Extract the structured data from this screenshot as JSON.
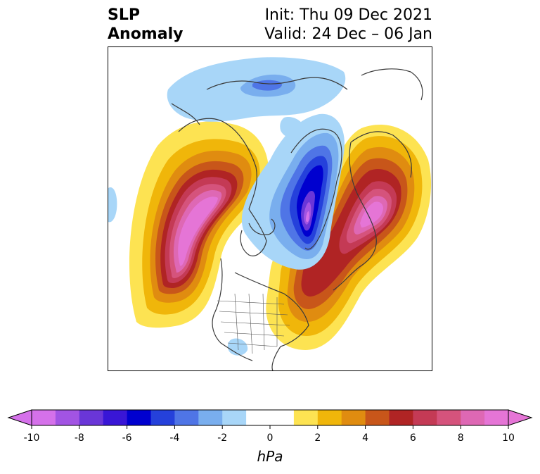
{
  "title": {
    "left_line1": "SLP",
    "left_line2": "Anomaly",
    "right_line1": "Init: Thu 09 Dec 2021",
    "right_line2": "Valid: 24 Dec – 06 Jan"
  },
  "colorbar": {
    "unit": "hPa",
    "ticks": [
      "-10",
      "-8",
      "-6",
      "-4",
      "-2",
      "0",
      "2",
      "4",
      "6",
      "8",
      "10"
    ],
    "colors": [
      "#d571ea",
      "#a254e3",
      "#6a36d8",
      "#3916d6",
      "#0000cf",
      "#2541db",
      "#4f75e6",
      "#79aeee",
      "#a8d6f8",
      "#ffffff",
      "#ffffff",
      "#fde352",
      "#f0b60a",
      "#e08c10",
      "#c8561a",
      "#b02424",
      "#c43a55",
      "#d5537c",
      "#de68b4",
      "#e575d6"
    ]
  }
}
